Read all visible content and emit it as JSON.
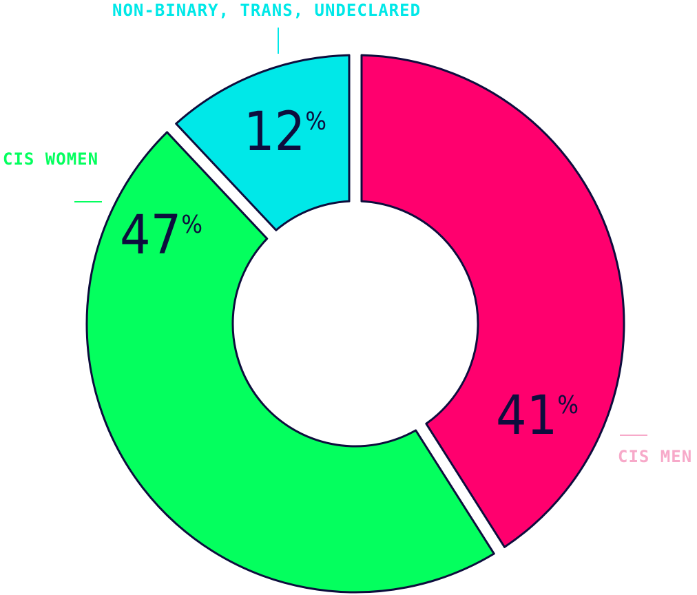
{
  "chart_data": {
    "type": "pie",
    "title": "",
    "variant": "donut",
    "series": [
      {
        "name": "CIS MEN",
        "value": 41,
        "label": "41",
        "unit": "%",
        "color": "#ff006e"
      },
      {
        "name": "CIS WOMEN",
        "value": 47,
        "label": "47",
        "unit": "%",
        "color": "#04ff5e"
      },
      {
        "name": "NON-BINARY, TRANS, UNDECLARED",
        "value": 12,
        "label": "12",
        "unit": "%",
        "color": "#00e8e8"
      }
    ],
    "legend": {
      "cis_men": {
        "text": "CIS MEN",
        "color": "#f7a9c9"
      },
      "cis_women": {
        "text": "CIS WOMEN",
        "color": "#04ff5e"
      },
      "non_binary": {
        "text": "NON-BINARY, TRANS, UNDECLARED",
        "color": "#00e8e8"
      }
    },
    "outline_color": "#0d0d3d"
  }
}
